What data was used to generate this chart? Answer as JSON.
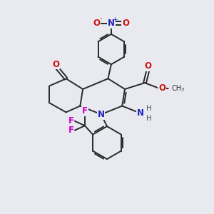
{
  "background_color": "#e8eaf0",
  "atom_colors": {
    "C": "#2a2a2a",
    "N": "#2222bb",
    "O": "#cc1111",
    "F": "#cc00cc",
    "H": "#555555"
  },
  "bond_color": "#2a2a2a",
  "bond_width": 1.4,
  "figsize": [
    3.0,
    3.0
  ],
  "dpi": 100,
  "xlim": [
    0,
    10
  ],
  "ylim": [
    0,
    10
  ]
}
